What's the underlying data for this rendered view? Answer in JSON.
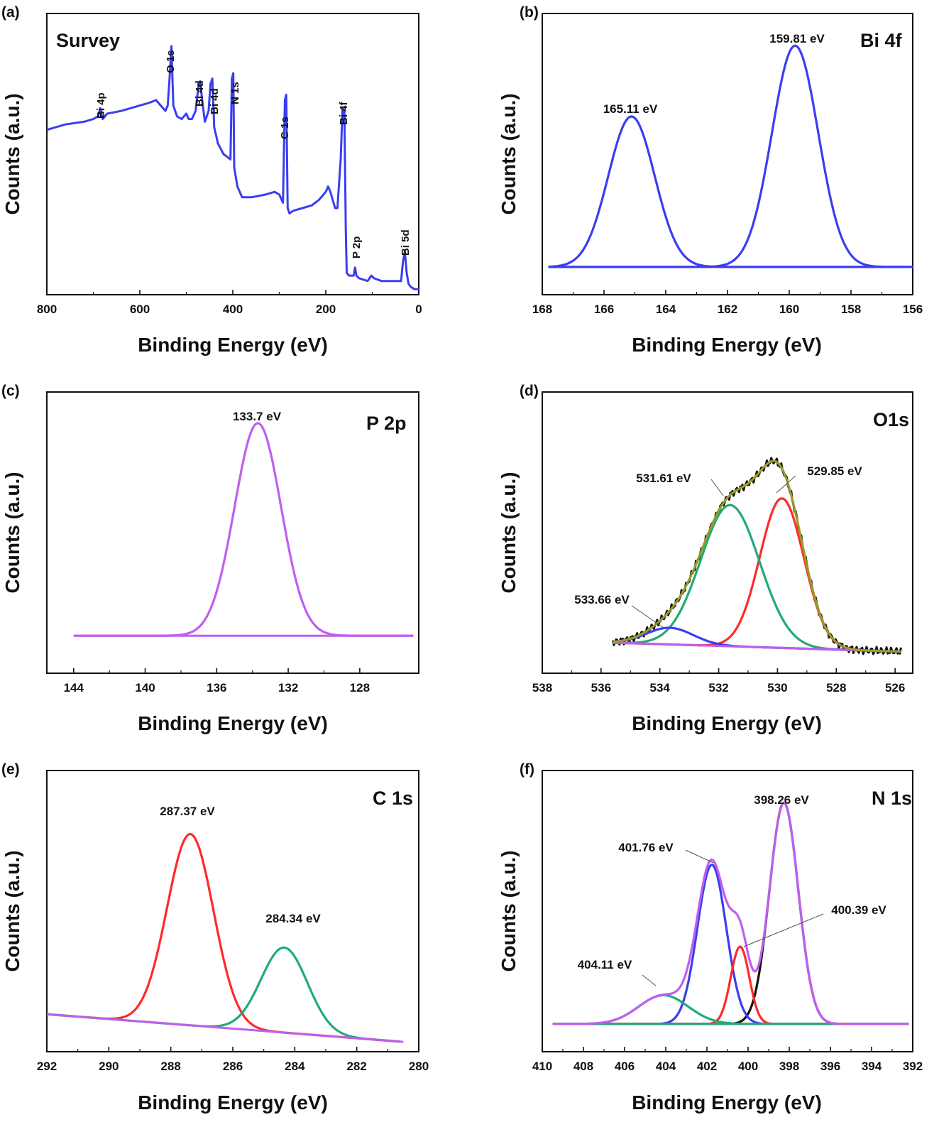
{
  "figure": {
    "panels": [
      {
        "id": "a",
        "label": "(a)",
        "title": "Survey"
      },
      {
        "id": "b",
        "label": "(b)",
        "title": "Bi 4f"
      },
      {
        "id": "c",
        "label": "(c)",
        "title": "P 2p"
      },
      {
        "id": "d",
        "label": "(d)",
        "title": "O1s"
      },
      {
        "id": "e",
        "label": "(e)",
        "title": "C 1s"
      },
      {
        "id": "f",
        "label": "(f)",
        "title": "N 1s"
      }
    ]
  },
  "chart_data": [
    {
      "id": "a",
      "type": "line",
      "title": "Survey",
      "xlabel": "Binding Energy (eV)",
      "ylabel": "Counts (a.u.)",
      "xlim": [
        800,
        0
      ],
      "ylim": [
        0,
        100
      ],
      "xticks": [
        800,
        600,
        400,
        200,
        0
      ],
      "grid": false,
      "series": [
        {
          "color": "#3a3ef0",
          "x": [
            800,
            760,
            720,
            700,
            690,
            685,
            680,
            670,
            640,
            600,
            580,
            565,
            555,
            545,
            540,
            536,
            532,
            528,
            520,
            510,
            500,
            495,
            488,
            480,
            474,
            470,
            466,
            460,
            452,
            448,
            444,
            440,
            432,
            420,
            412,
            405,
            402,
            399,
            397,
            390,
            380,
            360,
            330,
            310,
            300,
            292,
            288,
            285,
            282,
            278,
            270,
            250,
            230,
            215,
            200,
            195,
            190,
            185,
            180,
            175,
            168,
            164,
            160,
            157,
            155,
            150,
            145,
            140,
            137,
            134,
            128,
            110,
            102,
            96,
            80,
            60,
            45,
            38,
            34,
            30,
            26,
            22,
            18,
            10,
            0
          ],
          "y": [
            59,
            61,
            62,
            63,
            64,
            67,
            63,
            65,
            66,
            68,
            69,
            70,
            68,
            66,
            68,
            78,
            90,
            68,
            64,
            63,
            65,
            63,
            63,
            66,
            75,
            77,
            70,
            62,
            66,
            76,
            78,
            60,
            54,
            50,
            49,
            48,
            78,
            80,
            45,
            38,
            34,
            34,
            35,
            36,
            35,
            32,
            70,
            72,
            30,
            28,
            29,
            30,
            31,
            33,
            36,
            38,
            36,
            33,
            30,
            30,
            48,
            67,
            66,
            22,
            6,
            5,
            5,
            5,
            8,
            5,
            4,
            3,
            5,
            4,
            3,
            3,
            3,
            3,
            10,
            14,
            6,
            2,
            1,
            0,
            0
          ]
        }
      ],
      "annotations": [
        "Bi 4p",
        "O 1s",
        "Bi 4d",
        "Bi 4d",
        "N 1s",
        "C 1s",
        "Bi 4f",
        "P 2p",
        "Bi 5d"
      ]
    },
    {
      "id": "b",
      "type": "line",
      "title": "Bi 4f",
      "xlabel": "Binding Energy (eV)",
      "ylabel": "Counts (a.u.)",
      "xlim": [
        168,
        156
      ],
      "ylim": [
        -0.1,
        1.12
      ],
      "xticks": [
        168,
        166,
        164,
        162,
        160,
        158,
        156
      ],
      "grid": false,
      "peaks": [
        {
          "center": 165.11,
          "height": 0.68,
          "sigma": 0.75,
          "label": "165.11 eV",
          "color": "#3a3ef0"
        },
        {
          "center": 159.81,
          "height": 1.0,
          "sigma": 0.75,
          "label": "159.81 eV",
          "color": "#3a3ef0"
        }
      ],
      "baselines": [
        {
          "x": [
            167.8,
            162.5
          ],
          "y": [
            0,
            0
          ],
          "color": "#111111"
        },
        {
          "x": [
            162.5,
            157.0
          ],
          "y": [
            0,
            0
          ],
          "color": "#ff2a2a"
        }
      ]
    },
    {
      "id": "c",
      "type": "line",
      "title": "P 2p",
      "xlabel": "Binding Energy (eV)",
      "ylabel": "Counts (a.u.)",
      "xlim": [
        145.5,
        124.7
      ],
      "ylim": [
        -0.15,
        1.12
      ],
      "xticks": [
        144,
        140,
        136,
        132,
        128
      ],
      "grid": false,
      "peaks": [
        {
          "center": 133.7,
          "height": 1.0,
          "sigma": 1.3,
          "label": "133.7 eV",
          "color": "#c05ef0"
        }
      ],
      "baselines": [
        {
          "x": [
            144,
            125
          ],
          "y": [
            0,
            0
          ],
          "color": "#c05ef0"
        }
      ]
    },
    {
      "id": "d",
      "type": "line",
      "title": "O1s",
      "xlabel": "Binding Energy (eV)",
      "ylabel": "Counts (a.u.)",
      "xlim": [
        538,
        525.4
      ],
      "ylim": [
        -0.1,
        1.2
      ],
      "xticks": [
        538,
        536,
        534,
        532,
        530,
        528,
        526
      ],
      "grid": false,
      "peaks": [
        {
          "center": 529.85,
          "height": 0.72,
          "sigma": 0.75,
          "label": "529.85 eV",
          "color": "#ff2a2a"
        },
        {
          "center": 531.61,
          "height": 0.68,
          "sigma": 1.0,
          "label": "531.61 eV",
          "color": "#22aa77"
        },
        {
          "center": 533.66,
          "height": 0.08,
          "sigma": 0.8,
          "label": "533.66 eV",
          "color": "#3a3ef0"
        }
      ],
      "baseline": {
        "x": [
          535.6,
          526.5
        ],
        "y": [
          0.02,
          -0.02
        ],
        "color": "#c05ef0"
      },
      "envelope_color": "#9a9a2a",
      "raw_color": "#111111"
    },
    {
      "id": "e",
      "type": "line",
      "title": "C 1s",
      "xlabel": "Binding Energy (eV)",
      "ylabel": "Counts (a.u.)",
      "xlim": [
        292,
        280
      ],
      "ylim": [
        -0.15,
        1.12
      ],
      "xticks": [
        292,
        290,
        288,
        286,
        284,
        282,
        280
      ],
      "grid": false,
      "peaks": [
        {
          "center": 287.37,
          "height": 0.9,
          "sigma": 0.75,
          "label": "287.37 eV",
          "color": "#ff2a2a"
        },
        {
          "center": 284.34,
          "height": 0.4,
          "sigma": 0.75,
          "label": "284.34 eV",
          "color": "#22aa77"
        }
      ],
      "baseline": {
        "x": [
          292,
          280.5
        ],
        "y": [
          0.0,
          -0.13
        ],
        "color": "#c05ef0"
      }
    },
    {
      "id": "f",
      "type": "line",
      "title": "N 1s",
      "xlabel": "Binding Energy (eV)",
      "ylabel": "Counts (a.u.)",
      "xlim": [
        410,
        392
      ],
      "ylim": [
        -0.1,
        1.12
      ],
      "xticks": [
        410,
        408,
        406,
        404,
        402,
        400,
        398,
        396,
        394,
        392
      ],
      "grid": false,
      "peaks": [
        {
          "center": 398.26,
          "height": 1.0,
          "sigma": 0.7,
          "label": "398.26 eV",
          "color": "#111111"
        },
        {
          "center": 401.76,
          "height": 0.72,
          "sigma": 0.7,
          "label": "401.76 eV",
          "color": "#3a3ef0"
        },
        {
          "center": 400.39,
          "height": 0.35,
          "sigma": 0.45,
          "label": "400.39 eV",
          "color": "#ff2a2a"
        },
        {
          "center": 404.11,
          "height": 0.13,
          "sigma": 1.2,
          "label": "404.11 eV",
          "color": "#22aa77"
        }
      ],
      "baseline": {
        "x": [
          409.5,
          392.2
        ],
        "y": [
          0,
          0
        ],
        "color": "#22aa77"
      },
      "envelope_color": "#c05ef0"
    }
  ]
}
